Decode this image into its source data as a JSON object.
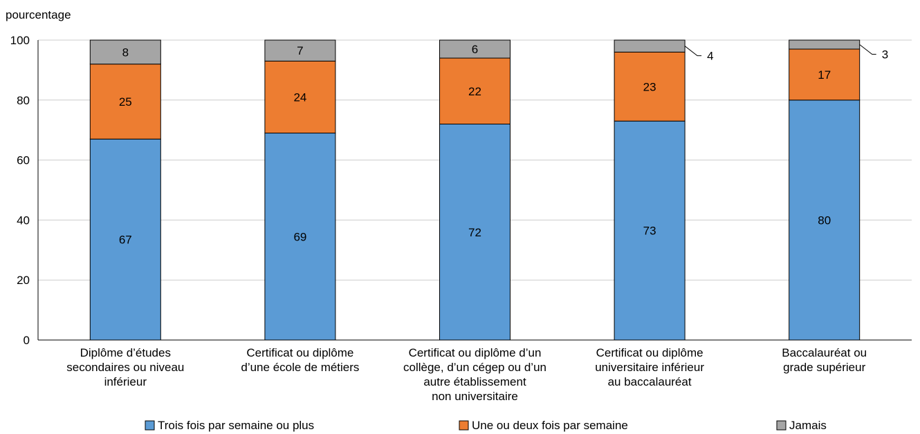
{
  "chart_data": {
    "type": "bar",
    "stacked": true,
    "title": "",
    "xlabel": "",
    "ylabel": "pourcentage",
    "ylim": [
      0,
      100
    ],
    "yticks": [
      0,
      20,
      40,
      60,
      80,
      100
    ],
    "grid": true,
    "legend_position": "bottom",
    "categories": [
      [
        "Diplôme d’études",
        "secondaires ou niveau",
        "inférieur"
      ],
      [
        "Certificat ou diplôme",
        "d’une école de métiers"
      ],
      [
        "Certificat ou diplôme d’un",
        "collège, d’un cégep ou d’un",
        "autre établissement",
        "non universitaire"
      ],
      [
        "Certificat ou diplôme",
        "universitaire inférieur",
        "au baccalauréat"
      ],
      [
        "Baccalauréat ou",
        "grade supérieur"
      ]
    ],
    "series": [
      {
        "name": "Trois fois par semaine ou plus",
        "color": "#5b9bd5",
        "values": [
          67,
          69,
          72,
          73,
          80
        ]
      },
      {
        "name": "Une ou deux fois par semaine",
        "color": "#ed7d31",
        "values": [
          25,
          24,
          22,
          23,
          17
        ]
      },
      {
        "name": "Jamais",
        "color": "#a5a5a5",
        "values": [
          8,
          7,
          6,
          4,
          3
        ]
      }
    ],
    "outside_labels": [
      false,
      false,
      false,
      true,
      true
    ]
  }
}
